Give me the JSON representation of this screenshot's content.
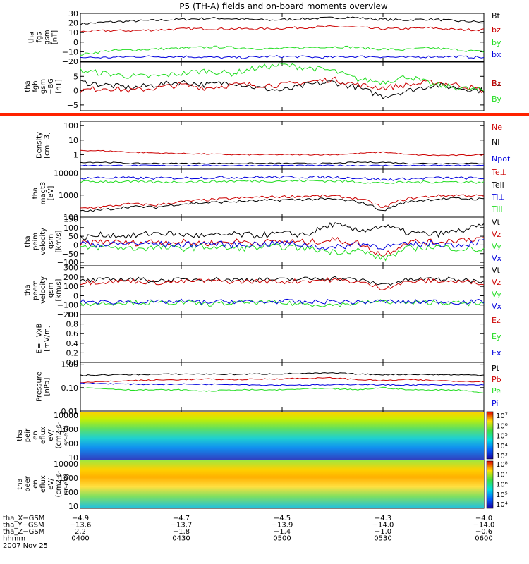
{
  "title": "P5 (TH-A) fields and on-board moments overview",
  "colors": {
    "black": "#000000",
    "red": "#cc0000",
    "green": "#22dd22",
    "blue": "#0000dd",
    "orange": "#ff2200"
  },
  "chart_data": [
    {
      "type": "line",
      "ylabel_lines": [
        "tha",
        "fgs",
        "gsm",
        "[nT]"
      ],
      "ylim": [
        -20,
        30
      ],
      "yticks": [
        [
          "30",
          30
        ],
        [
          "20",
          20
        ],
        [
          "10",
          10
        ],
        [
          "0",
          0
        ],
        [
          "−10",
          -10
        ],
        [
          "−20",
          -20
        ]
      ],
      "series": [
        {
          "name": "Bt",
          "color": "black",
          "values": [
            19,
            21,
            22,
            23,
            24,
            25,
            24,
            23,
            24,
            25,
            26,
            24,
            23,
            24,
            22,
            21
          ]
        },
        {
          "name": "bz",
          "color": "red",
          "values": [
            11,
            12,
            12,
            13,
            14,
            14,
            14,
            14,
            15,
            16,
            16,
            14,
            14,
            15,
            13,
            13
          ]
        },
        {
          "name": "by",
          "color": "green",
          "values": [
            -13,
            -9,
            -8,
            -7,
            -6,
            -5,
            -6,
            -7,
            -6,
            -5,
            -5,
            -7,
            -8,
            -6,
            -8,
            -10
          ]
        },
        {
          "name": "bx",
          "color": "blue",
          "values": [
            -16,
            -16,
            -15,
            -15,
            -15,
            -16,
            -16,
            -15,
            -15,
            -16,
            -15,
            -15,
            -16,
            -15,
            -15,
            -16
          ]
        }
      ]
    },
    {
      "type": "line",
      "ylabel_lines": [
        "tha",
        "fgh",
        "gsm",
        "−BG",
        "[nT]"
      ],
      "ylim": [
        -7,
        10
      ],
      "yticks": [
        [
          "5",
          5
        ],
        [
          "0",
          0
        ],
        [
          "−5",
          -5
        ]
      ],
      "series": [
        {
          "name": "Bz",
          "color": "black",
          "values": [
            3,
            2,
            1,
            2,
            3,
            2,
            3,
            1,
            0,
            2,
            3,
            1,
            -2,
            0,
            2,
            1,
            0
          ]
        },
        {
          "name": "Bx",
          "color": "red",
          "values": [
            0,
            1,
            0,
            1,
            2,
            1,
            2,
            2,
            2,
            3,
            4,
            2,
            1,
            2,
            3,
            2,
            0
          ]
        },
        {
          "name": "By",
          "color": "green",
          "values": [
            7,
            6,
            5,
            5,
            6,
            7,
            6,
            8,
            9,
            8,
            7,
            4,
            3,
            5,
            2,
            1,
            0
          ]
        }
      ]
    },
    {
      "type": "line",
      "ylabel_lines": [
        "Density",
        "[cm−3]"
      ],
      "yscale": "log",
      "ylim": [
        0.1,
        200
      ],
      "yticks": [
        [
          "100",
          100
        ],
        [
          "10",
          10
        ],
        [
          "1",
          1
        ]
      ],
      "series": [
        {
          "name": "Ne",
          "color": "red",
          "values": [
            2.0,
            1.8,
            1.5,
            1.3,
            1.2,
            1.1,
            1.0,
            1.0,
            1.0,
            1.0,
            1.0,
            1.2,
            1.5,
            1.0,
            0.9,
            0.9,
            1.0
          ]
        },
        {
          "name": "Ni",
          "color": "black",
          "values": [
            0.3,
            0.3,
            0.25,
            0.25,
            0.25,
            0.25,
            0.25,
            0.25,
            0.25,
            0.25,
            0.25,
            0.3,
            0.3,
            0.25,
            0.25,
            0.25,
            0.25
          ]
        },
        {
          "name": "Npot",
          "color": "blue",
          "values": [
            0.18,
            0.18,
            0.18,
            0.18,
            0.18,
            0.18,
            0.18,
            0.18,
            0.18,
            0.18,
            0.18,
            0.18,
            0.18,
            0.18,
            0.18,
            0.18,
            0.18
          ]
        }
      ]
    },
    {
      "type": "line",
      "ylabel_lines": [
        "tha",
        "magt3",
        "[eV]"
      ],
      "yscale": "log",
      "ylim": [
        100,
        15000
      ],
      "yticks": [
        [
          "10000",
          10000
        ],
        [
          "1000",
          1000
        ],
        [
          "100",
          100
        ]
      ],
      "series": [
        {
          "name": "Te⊥",
          "color": "red",
          "values": [
            250,
            300,
            400,
            350,
            500,
            600,
            700,
            800,
            850,
            900,
            900,
            700,
            250,
            700,
            900,
            1000,
            900
          ]
        },
        {
          "name": "Tell",
          "color": "black",
          "values": [
            180,
            220,
            300,
            280,
            400,
            450,
            500,
            550,
            600,
            650,
            650,
            500,
            180,
            500,
            650,
            700,
            650
          ]
        },
        {
          "name": "Ti⊥",
          "color": "blue",
          "values": [
            6000,
            6200,
            6000,
            5800,
            6000,
            6200,
            6400,
            6500,
            6500,
            6600,
            6500,
            6000,
            5000,
            5500,
            6000,
            6000,
            5800
          ]
        },
        {
          "name": "Till",
          "color": "green",
          "values": [
            4000,
            4200,
            4000,
            3900,
            4000,
            4100,
            4300,
            4400,
            4400,
            4500,
            4400,
            4000,
            3500,
            3800,
            4000,
            4000,
            3800
          ]
        }
      ]
    },
    {
      "type": "line",
      "ylabel_lines": [
        "tha",
        "peim",
        "velocity",
        "gsm",
        "[km/s]"
      ],
      "ylim": [
        -120,
        160
      ],
      "yticks": [
        [
          "150",
          150
        ],
        [
          "100",
          100
        ],
        [
          "50",
          50
        ],
        [
          "0",
          0
        ],
        [
          "−50",
          -50
        ],
        [
          "−100",
          -100
        ]
      ],
      "series": [
        {
          "name": "Vt",
          "color": "black",
          "values": [
            40,
            60,
            50,
            70,
            60,
            50,
            60,
            55,
            65,
            60,
            120,
            80,
            110,
            70,
            60,
            80,
            110
          ]
        },
        {
          "name": "Vz",
          "color": "red",
          "values": [
            10,
            20,
            10,
            20,
            15,
            10,
            20,
            15,
            20,
            15,
            30,
            10,
            -60,
            20,
            15,
            30,
            40
          ]
        },
        {
          "name": "Vy",
          "color": "green",
          "values": [
            -20,
            -10,
            -20,
            -15,
            -20,
            -10,
            -20,
            -15,
            -10,
            -20,
            -40,
            -30,
            -80,
            -20,
            -10,
            -20,
            -30
          ]
        },
        {
          "name": "Vx",
          "color": "blue",
          "values": [
            10,
            0,
            10,
            5,
            0,
            10,
            0,
            5,
            10,
            0,
            -20,
            10,
            -10,
            0,
            10,
            0,
            20
          ]
        }
      ]
    },
    {
      "type": "line",
      "ylabel_lines": [
        "tha",
        "peem",
        "velocity",
        "gsm",
        "[km/s]"
      ],
      "ylim": [
        -200,
        320
      ],
      "yticks": [
        [
          "300",
          300
        ],
        [
          "200",
          200
        ],
        [
          "100",
          100
        ],
        [
          "0",
          0
        ],
        [
          "−100",
          -100
        ],
        [
          "−200",
          -200
        ]
      ],
      "series": [
        {
          "name": "Vt",
          "color": "black",
          "values": [
            160,
            170,
            180,
            160,
            170,
            180,
            170,
            175,
            170,
            180,
            190,
            170,
            120,
            170,
            180,
            170,
            160
          ]
        },
        {
          "name": "Vz",
          "color": "red",
          "values": [
            140,
            150,
            160,
            140,
            150,
            160,
            150,
            155,
            150,
            160,
            170,
            150,
            80,
            150,
            160,
            150,
            140
          ]
        },
        {
          "name": "Vy",
          "color": "green",
          "values": [
            -90,
            -80,
            -70,
            -80,
            -70,
            -90,
            -80,
            -70,
            -80,
            -90,
            -100,
            -80,
            -60,
            -80,
            -70,
            -80,
            -90
          ]
        },
        {
          "name": "Vx",
          "color": "blue",
          "values": [
            -60,
            -70,
            -60,
            -70,
            -60,
            -70,
            -60,
            -70,
            -60,
            -70,
            -60,
            -70,
            -60,
            -70,
            -60,
            -70,
            -60
          ]
        }
      ]
    },
    {
      "type": "line",
      "ylabel_lines": [
        "E=−VxB",
        "[mV/m]"
      ],
      "ylim": [
        0,
        1
      ],
      "yticks": [
        [
          "1.0",
          1.0
        ],
        [
          "0.8",
          0.8
        ],
        [
          "0.6",
          0.6
        ],
        [
          "0.4",
          0.4
        ],
        [
          "0.2",
          0.2
        ],
        [
          "0.0",
          0
        ]
      ],
      "series": [
        {
          "name": "Ez",
          "color": "red",
          "values": []
        },
        {
          "name": "Ey",
          "color": "green",
          "values": []
        },
        {
          "name": "Ex",
          "color": "blue",
          "values": []
        }
      ]
    },
    {
      "type": "line",
      "ylabel_lines": [
        "Pressure",
        "[nPa]"
      ],
      "yscale": "log",
      "ylim": [
        0.01,
        1.2
      ],
      "yticks": [
        [
          "1.00",
          1.0
        ],
        [
          "0.10",
          0.1
        ],
        [
          "0.01",
          0.01
        ]
      ],
      "series": [
        {
          "name": "Pt",
          "color": "black",
          "values": [
            0.33,
            0.35,
            0.36,
            0.37,
            0.38,
            0.38,
            0.37,
            0.38,
            0.39,
            0.4,
            0.42,
            0.38,
            0.36,
            0.37,
            0.36,
            0.35,
            0.34
          ]
        },
        {
          "name": "Pb",
          "color": "red",
          "values": [
            0.17,
            0.18,
            0.2,
            0.21,
            0.22,
            0.23,
            0.22,
            0.23,
            0.24,
            0.25,
            0.26,
            0.22,
            0.2,
            0.22,
            0.2,
            0.19,
            0.18
          ]
        },
        {
          "name": "Pe",
          "color": "green",
          "values": [
            0.1,
            0.09,
            0.08,
            0.08,
            0.08,
            0.07,
            0.08,
            0.08,
            0.08,
            0.09,
            0.09,
            0.08,
            0.1,
            0.08,
            0.08,
            0.08,
            0.06
          ]
        },
        {
          "name": "Pi",
          "color": "blue",
          "values": [
            0.15,
            0.15,
            0.14,
            0.14,
            0.14,
            0.14,
            0.14,
            0.13,
            0.13,
            0.13,
            0.13,
            0.14,
            0.13,
            0.13,
            0.13,
            0.13,
            0.13
          ]
        }
      ]
    },
    {
      "type": "heatmap",
      "ylabel_lines": [
        "tha",
        "peir",
        "en",
        "eflux",
        "eV/",
        "(cm2-s-",
        "sr-eV)"
      ],
      "yscale": "log",
      "ylim": [
        7,
        20000
      ],
      "yticks": [
        [
          "10000",
          10000
        ],
        [
          "1000",
          1000
        ],
        [
          "100",
          100
        ],
        [
          "10",
          10
        ]
      ],
      "colorbar": {
        "min_exp": 3,
        "max_exp": 7,
        "labels": [
          "10⁷",
          "10⁶",
          "10⁵",
          "10⁴",
          "10³"
        ]
      }
    },
    {
      "type": "heatmap",
      "ylabel_lines": [
        "tha",
        "peer",
        "en",
        "eflux",
        "eV/",
        "(cm2-s-",
        "sr-eV)"
      ],
      "yscale": "log",
      "ylim": [
        7,
        20000
      ],
      "yticks": [
        [
          "10000",
          10000
        ],
        [
          "1000",
          1000
        ],
        [
          "100",
          100
        ],
        [
          "10",
          10
        ]
      ],
      "colorbar": {
        "min_exp": 4,
        "max_exp": 8,
        "labels": [
          "10⁸",
          "10⁷",
          "10⁶",
          "10⁵",
          "10⁴"
        ]
      }
    }
  ],
  "x_axis": {
    "tick_times": [
      "0400",
      "0430",
      "0500",
      "0530",
      "0600"
    ],
    "rows": [
      {
        "label": "tha_X−GSM",
        "values": [
          "−4.9",
          "−4.7",
          "−4.5",
          "−4.3",
          "−4.0"
        ]
      },
      {
        "label": "tha_Y−GSM",
        "values": [
          "−13.6",
          "−13.7",
          "−13.9",
          "−14.0",
          "−14.0"
        ]
      },
      {
        "label": "tha_Z−GSM",
        "values": [
          "2.2",
          "−1.8",
          "−1.4",
          "−1.0",
          "−0.6"
        ]
      },
      {
        "label": "hhmm",
        "values": [
          "0400",
          "0430",
          "0500",
          "0530",
          "0600"
        ]
      }
    ],
    "date": "2007 Nov 25"
  }
}
